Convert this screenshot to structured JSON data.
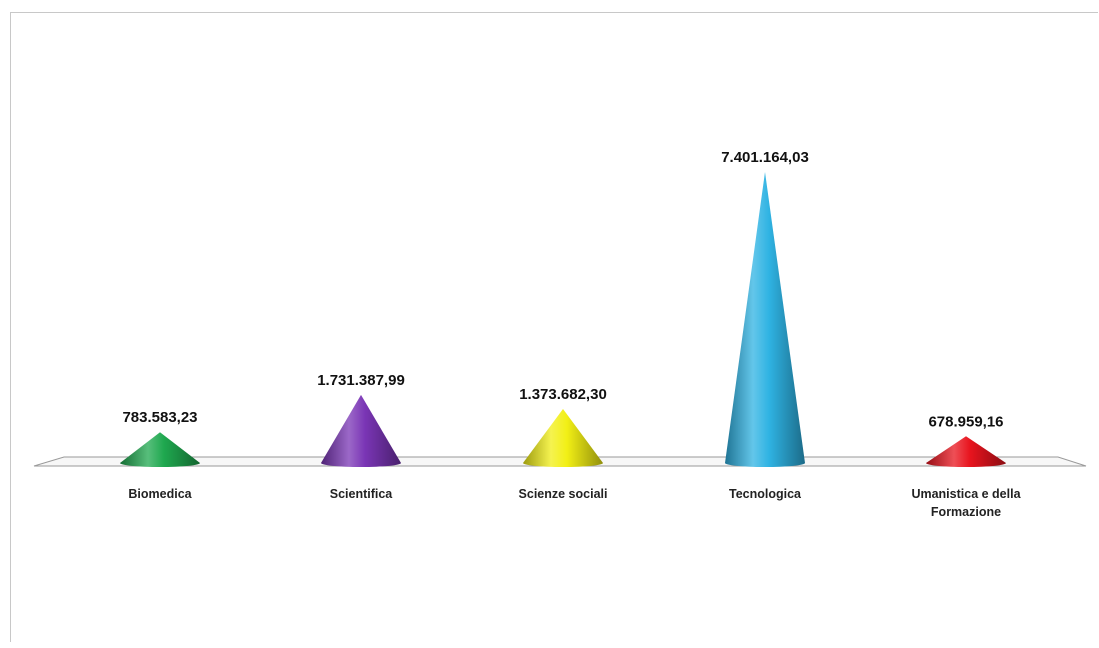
{
  "chart_data": {
    "type": "bar",
    "shape": "cone",
    "title": "",
    "xlabel": "",
    "ylabel": "",
    "categories": [
      [
        "Biomedica"
      ],
      [
        "Scientifica"
      ],
      [
        "Scienze sociali"
      ],
      [
        "Tecnologica"
      ],
      [
        "Umanistica e della",
        "Formazione"
      ]
    ],
    "values": [
      783583.23,
      1731387.99,
      1373682.3,
      7401164.03,
      678959.16
    ],
    "value_labels": [
      "783.583,23",
      "1.731.387,99",
      "1.373.682,30",
      "7.401.164,03",
      "678.959,16"
    ],
    "colors": [
      "#1fa84f",
      "#7a35b5",
      "#f2ef15",
      "#2fb3e3",
      "#e8141e"
    ],
    "grid": false,
    "legend": "none"
  }
}
